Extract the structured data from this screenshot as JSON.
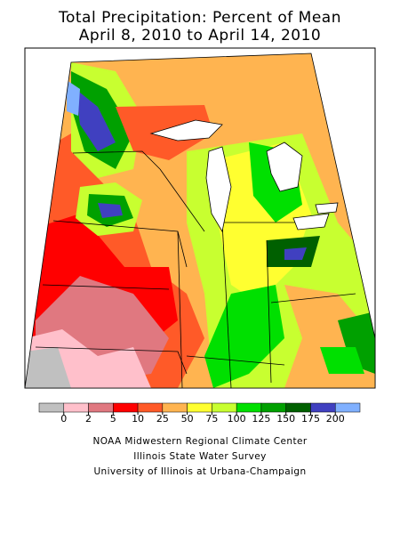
{
  "title_line1": "Total Precipitation: Percent of Mean",
  "title_line2": "April 8, 2010 to April 14, 2010",
  "legend": {
    "ticks": [
      "0",
      "2",
      "5",
      "10",
      "25",
      "50",
      "75",
      "100",
      "125",
      "150",
      "175",
      "200"
    ],
    "colors": [
      "#c0c0c0",
      "#ffc0cb",
      "#e07880",
      "#ff0000",
      "#ff5a28",
      "#ffb450",
      "#ffff30",
      "#c8ff30",
      "#00e000",
      "#00a000",
      "#006000",
      "#4040c0",
      "#80b0ff"
    ]
  },
  "credits": [
    "NOAA Midwestern Regional Climate Center",
    "Illinois State Water Survey",
    "University of Illinois at Urbana-Champaign"
  ]
}
